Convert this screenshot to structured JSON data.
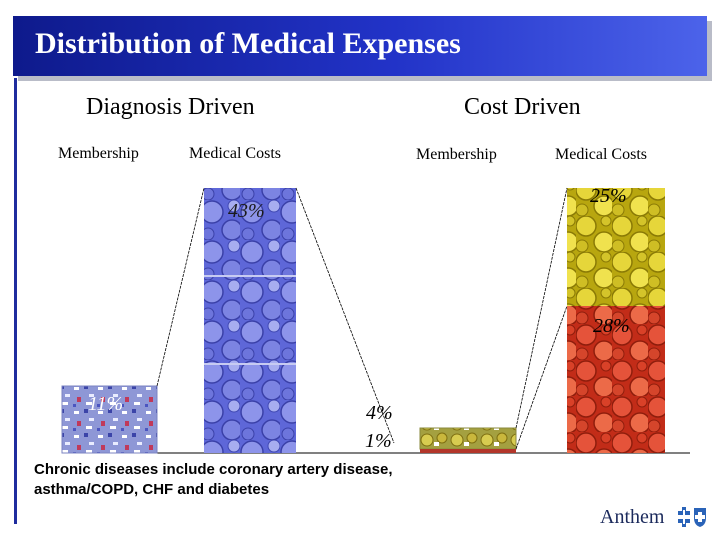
{
  "title": "Distribution of Medical Expenses",
  "diagnosis": {
    "heading": "Diagnosis Driven",
    "membership_label": "Membership",
    "costs_label": "Medical Costs",
    "membership_pct": "11%",
    "costs_pct": "43%",
    "membership_value": 11,
    "costs_value": 43
  },
  "cost": {
    "heading": "Cost Driven",
    "membership_label": "Membership",
    "costs_label": "Medical Costs",
    "membership_pct_top": "4%",
    "membership_pct_bottom": "1%",
    "costs_pct_top": "25%",
    "costs_pct_bottom": "28%"
  },
  "footnote": "Chronic diseases include coronary artery disease, asthma/COPD, CHF and diabetes",
  "logo": {
    "name": "Anthem",
    "mark": "cross-shield-icon"
  },
  "colors": {
    "title_bar": "#1a2aa8",
    "blue_coins": "#5a63d6",
    "gold_coins": "#d8c622",
    "red_coins": "#d53a25",
    "confetti": "#7a86c8"
  }
}
